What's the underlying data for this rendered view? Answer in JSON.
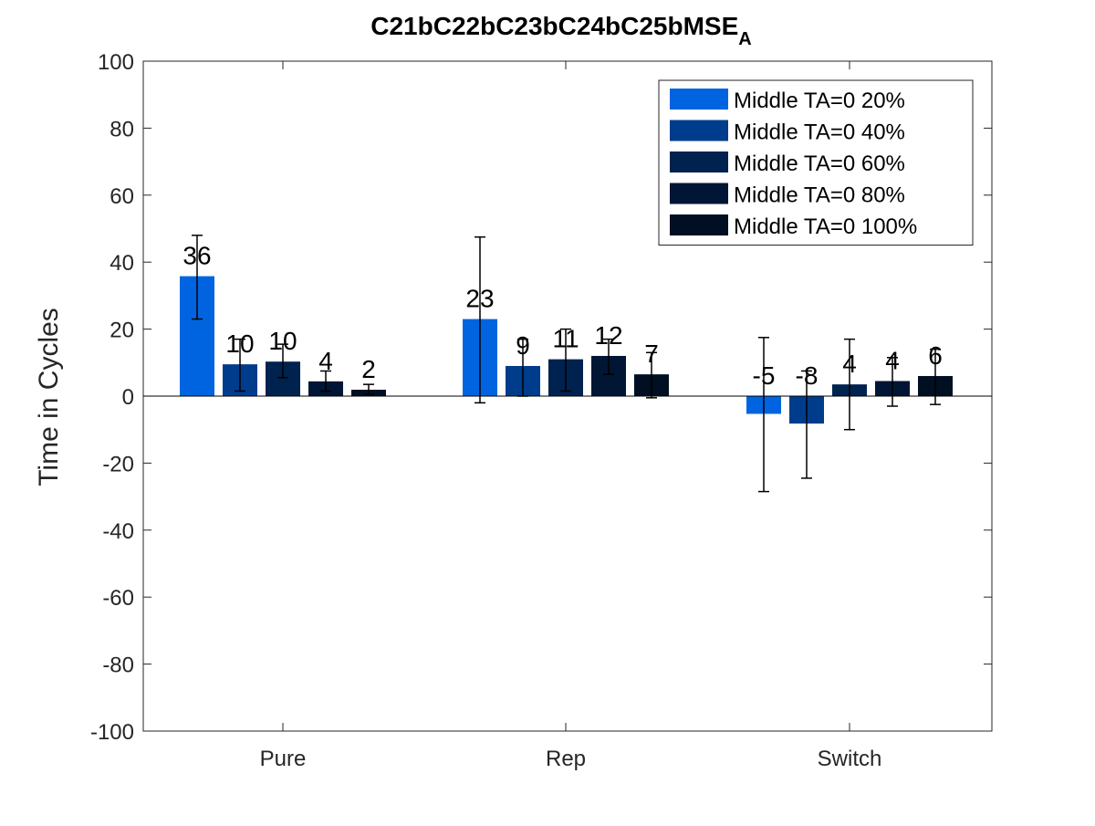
{
  "chart_data": {
    "type": "bar",
    "title": "C21bC22bC23bC24bC25bMSE",
    "title_subscript": "A",
    "xlabel": "",
    "ylabel": "Time in Cycles",
    "ylim": [
      -100,
      100
    ],
    "yticks": [
      -100,
      -80,
      -60,
      -40,
      -20,
      0,
      20,
      40,
      60,
      80,
      100
    ],
    "categories": [
      "Pure",
      "Rep",
      "Switch"
    ],
    "legend_position": "top-right",
    "grid": false,
    "series": [
      {
        "name": "Middle TA=0 20%",
        "color": "#0064e1",
        "values": [
          35.8,
          23.0,
          -5.3
        ],
        "labels": [
          "36",
          "23",
          "-5"
        ],
        "err_low": [
          23.0,
          -2.0,
          -28.5
        ],
        "err_high": [
          48.0,
          47.5,
          17.5
        ]
      },
      {
        "name": "Middle TA=0 40%",
        "color": "#003c8c",
        "values": [
          9.5,
          9.0,
          -8.2
        ],
        "labels": [
          "10",
          "9",
          "-8"
        ],
        "err_low": [
          1.5,
          0.0,
          -24.5
        ],
        "err_high": [
          17.0,
          17.0,
          7.5
        ]
      },
      {
        "name": "Middle TA=0 60%",
        "color": "#00224f",
        "values": [
          10.3,
          11.0,
          3.5
        ],
        "labels": [
          "10",
          "11",
          "4"
        ],
        "err_low": [
          5.5,
          1.5,
          -10.0
        ],
        "err_high": [
          15.5,
          20.0,
          17.0
        ]
      },
      {
        "name": "Middle TA=0 80%",
        "color": "#001634",
        "values": [
          4.4,
          12.0,
          4.5
        ],
        "labels": [
          "4",
          "12",
          "4"
        ],
        "err_low": [
          1.5,
          6.5,
          -3.0
        ],
        "err_high": [
          7.5,
          17.0,
          11.5
        ]
      },
      {
        "name": "Middle TA=0 100%",
        "color": "#000f22",
        "values": [
          1.9,
          6.5,
          6.0
        ],
        "labels": [
          "2",
          "7",
          "6"
        ],
        "err_low": [
          0.5,
          -0.5,
          -2.5
        ],
        "err_high": [
          3.5,
          13.0,
          14.0
        ]
      }
    ]
  }
}
